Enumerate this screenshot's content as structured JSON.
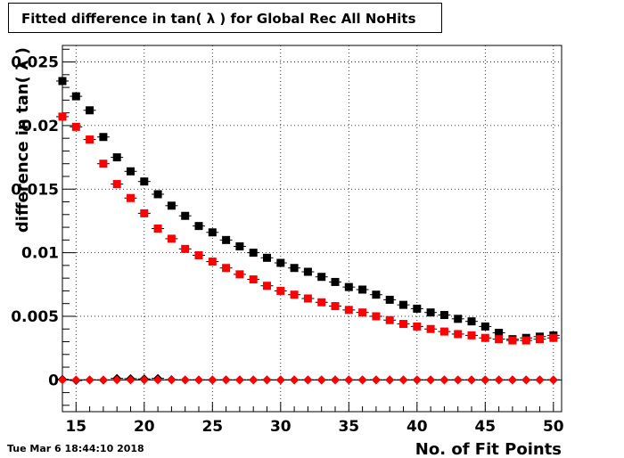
{
  "title": "Fitted difference in tan( λ ) for Global Rec All NoHits",
  "timestamp": "Tue Mar  6 18:44:10 2018",
  "chart_data": {
    "type": "scatter",
    "title": "Fitted difference in tan( λ ) for Global Rec All NoHits",
    "xlabel": "No. of Fit Points",
    "ylabel": "difference in tan( λ )",
    "xlim": [
      14,
      50.6
    ],
    "ylim": [
      -0.0025,
      0.0263
    ],
    "grid": true,
    "xticks": [
      "15",
      "20",
      "25",
      "30",
      "35",
      "40",
      "45",
      "50"
    ],
    "yticks": [
      "0",
      "0.005",
      "0.01",
      "0.015",
      "0.02",
      "0.025"
    ],
    "x": [
      14,
      15,
      16,
      17,
      18,
      19,
      20,
      21,
      22,
      23,
      24,
      25,
      26,
      27,
      28,
      29,
      30,
      31,
      32,
      33,
      34,
      35,
      36,
      37,
      38,
      39,
      40,
      41,
      42,
      43,
      44,
      45,
      46,
      47,
      48,
      49,
      50
    ],
    "series": [
      {
        "color": "#000000",
        "marker": "square",
        "values": [
          0.0235,
          0.0223,
          0.0212,
          0.0191,
          0.0175,
          0.0164,
          0.0156,
          0.0146,
          0.0137,
          0.0129,
          0.0121,
          0.0116,
          0.011,
          0.0105,
          0.01,
          0.0096,
          0.0092,
          0.0088,
          0.0085,
          0.0081,
          0.0077,
          0.0073,
          0.0071,
          0.0067,
          0.0063,
          0.0059,
          0.0056,
          0.0053,
          0.0051,
          0.0048,
          0.0046,
          0.0042,
          0.0037,
          0.0032,
          0.0033,
          0.0034,
          0.0035
        ]
      },
      {
        "color": "#ff0000",
        "marker": "square",
        "values": [
          0.0207,
          0.0199,
          0.0189,
          0.017,
          0.0154,
          0.0143,
          0.0131,
          0.0119,
          0.0111,
          0.0103,
          0.0098,
          0.0093,
          0.0088,
          0.0083,
          0.0079,
          0.0074,
          0.007,
          0.0067,
          0.0064,
          0.0061,
          0.0058,
          0.0055,
          0.0053,
          0.005,
          0.0047,
          0.0044,
          0.0042,
          0.004,
          0.0038,
          0.0036,
          0.0035,
          0.0033,
          0.0032,
          0.0031,
          0.0031,
          0.0032,
          0.0033
        ]
      },
      {
        "color": "#000000",
        "marker": "diamond",
        "values": [
          5e-05,
          -5e-05,
          0,
          -2e-05,
          0.00012,
          0.0001,
          8e-05,
          0.00012,
          2e-05,
          0,
          0,
          0,
          0,
          0,
          0,
          0,
          0,
          0,
          0,
          0,
          0,
          0,
          0,
          0,
          0,
          0,
          0,
          0,
          0,
          0,
          0,
          0,
          0,
          0,
          0,
          0,
          0
        ]
      },
      {
        "color": "#ff0000",
        "marker": "diamond",
        "values": [
          0,
          0,
          0,
          0,
          0,
          0,
          0,
          0,
          0,
          0,
          0,
          0,
          0,
          0,
          0,
          0,
          0,
          0,
          0,
          0,
          0,
          0,
          0,
          0,
          0,
          0,
          0,
          0,
          0,
          0,
          0,
          0,
          0,
          0,
          0,
          0,
          0
        ]
      }
    ]
  }
}
